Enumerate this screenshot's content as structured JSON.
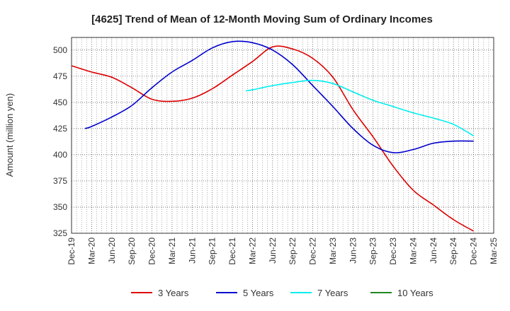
{
  "chart_data": {
    "type": "line",
    "title": "[4625]  Trend of Mean of 12-Month Moving Sum of Ordinary Incomes",
    "xlabel": "",
    "ylabel": "Amount (million yen)",
    "ylim": [
      325,
      512
    ],
    "yticks": [
      325,
      350,
      375,
      400,
      425,
      450,
      475,
      500
    ],
    "x_categories": [
      "Dec-19",
      "Mar-20",
      "Jun-20",
      "Sep-20",
      "Dec-20",
      "Mar-21",
      "Jun-21",
      "Sep-21",
      "Dec-21",
      "Mar-22",
      "Jun-22",
      "Sep-22",
      "Dec-22",
      "Mar-23",
      "Jun-23",
      "Sep-23",
      "Dec-23",
      "Mar-24",
      "Jun-24",
      "Sep-24",
      "Dec-24",
      "Mar-25"
    ],
    "grid": true,
    "legend_position": "bottom",
    "series": [
      {
        "name": "3 Years",
        "color": "#dd0000",
        "points": [
          [
            0,
            485
          ],
          [
            1,
            479
          ],
          [
            2,
            474
          ],
          [
            3,
            464
          ],
          [
            4,
            453
          ],
          [
            5,
            451
          ],
          [
            6,
            454
          ],
          [
            7,
            463
          ],
          [
            8,
            476
          ],
          [
            9,
            489
          ],
          [
            10,
            503
          ],
          [
            11,
            501
          ],
          [
            12,
            492
          ],
          [
            13,
            474
          ],
          [
            14,
            443
          ],
          [
            15,
            417
          ],
          [
            16,
            389
          ],
          [
            17,
            366
          ],
          [
            18,
            352
          ],
          [
            19,
            338
          ],
          [
            20,
            327
          ]
        ]
      },
      {
        "name": "5 Years",
        "color": "#0000cc",
        "points": [
          [
            0.67,
            425
          ],
          [
            1,
            427
          ],
          [
            2,
            436
          ],
          [
            3,
            447
          ],
          [
            4,
            464
          ],
          [
            5,
            479
          ],
          [
            6,
            490
          ],
          [
            7,
            502
          ],
          [
            8,
            508
          ],
          [
            9,
            507
          ],
          [
            10,
            500
          ],
          [
            11,
            486
          ],
          [
            12,
            466
          ],
          [
            13,
            446
          ],
          [
            14,
            425
          ],
          [
            15,
            409
          ],
          [
            16,
            402
          ],
          [
            17,
            405
          ],
          [
            18,
            411
          ],
          [
            19,
            413
          ],
          [
            20,
            413
          ]
        ]
      },
      {
        "name": "7 Years",
        "color": "#00eeee",
        "points": [
          [
            8.67,
            461
          ],
          [
            9,
            462
          ],
          [
            10,
            466
          ],
          [
            11,
            469
          ],
          [
            12,
            471
          ],
          [
            13,
            468
          ],
          [
            14,
            460
          ],
          [
            15,
            452
          ],
          [
            16,
            446
          ],
          [
            17,
            440
          ],
          [
            18,
            435
          ],
          [
            19,
            429
          ],
          [
            20,
            418
          ]
        ]
      },
      {
        "name": "10 Years",
        "color": "#228822",
        "points": []
      }
    ]
  }
}
